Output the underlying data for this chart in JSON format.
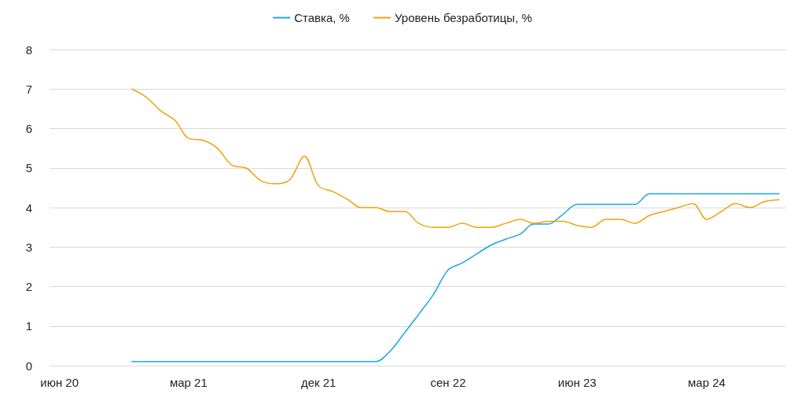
{
  "chart_data": {
    "type": "line",
    "x": [
      "2020-11",
      "2020-12",
      "2021-01",
      "2021-02",
      "2021-03",
      "2021-04",
      "2021-05",
      "2021-06",
      "2021-07",
      "2021-08",
      "2021-09",
      "2021-10",
      "2021-11",
      "2021-12",
      "2022-01",
      "2022-02",
      "2022-03",
      "2022-04",
      "2022-05",
      "2022-06",
      "2022-07",
      "2022-08",
      "2022-09",
      "2022-10",
      "2022-11",
      "2022-12",
      "2023-01",
      "2023-02",
      "2023-03",
      "2023-04",
      "2023-05",
      "2023-06",
      "2023-07",
      "2023-08",
      "2023-09",
      "2023-10",
      "2023-11",
      "2023-12",
      "2024-01",
      "2024-02",
      "2024-03",
      "2024-04",
      "2024-05",
      "2024-06",
      "2024-07",
      "2024-08"
    ],
    "series": [
      {
        "name": "Ставка, %",
        "color": "#1aa7e0",
        "values": [
          0.1,
          0.1,
          0.1,
          0.1,
          0.1,
          0.1,
          0.1,
          0.1,
          0.1,
          0.1,
          0.1,
          0.1,
          0.1,
          0.1,
          0.1,
          0.1,
          0.1,
          0.1,
          0.36,
          0.83,
          1.3,
          1.8,
          2.42,
          2.6,
          2.83,
          3.05,
          3.2,
          3.33,
          3.58,
          3.58,
          3.82,
          4.08,
          4.08,
          4.08,
          4.08,
          4.08,
          4.35,
          4.35,
          4.35,
          4.35,
          4.35,
          4.35,
          4.35,
          4.35,
          4.35,
          4.35
        ]
      },
      {
        "name": "Уровень безработицы, %",
        "color": "#f0a30a",
        "values": [
          7.0,
          6.8,
          6.45,
          6.2,
          5.75,
          5.7,
          5.5,
          5.07,
          5.0,
          4.68,
          4.6,
          4.7,
          5.3,
          4.55,
          4.4,
          4.2,
          4.0,
          4.0,
          3.9,
          3.9,
          3.6,
          3.5,
          3.5,
          3.6,
          3.5,
          3.5,
          3.6,
          3.7,
          3.6,
          3.65,
          3.65,
          3.55,
          3.5,
          3.7,
          3.7,
          3.6,
          3.8,
          3.9,
          4.0,
          4.1,
          3.7,
          3.9,
          4.1,
          4.0,
          4.15,
          4.2
        ]
      }
    ],
    "xlim": [
      "2020-05-11",
      "2024-08-16"
    ],
    "xticks": [
      {
        "value": "2020-06",
        "label": "июн 20"
      },
      {
        "value": "2021-03",
        "label": "мар 21"
      },
      {
        "value": "2021-12",
        "label": "дек 21"
      },
      {
        "value": "2022-09",
        "label": "сен 22"
      },
      {
        "value": "2023-06",
        "label": "июн 23"
      },
      {
        "value": "2024-03",
        "label": "мар 24"
      }
    ],
    "ylim": [
      0,
      8
    ],
    "yticks": [
      0,
      1,
      2,
      3,
      4,
      5,
      6,
      7,
      8
    ],
    "grid": "y",
    "legend": "top",
    "marker": "none",
    "line_style": "solid"
  }
}
